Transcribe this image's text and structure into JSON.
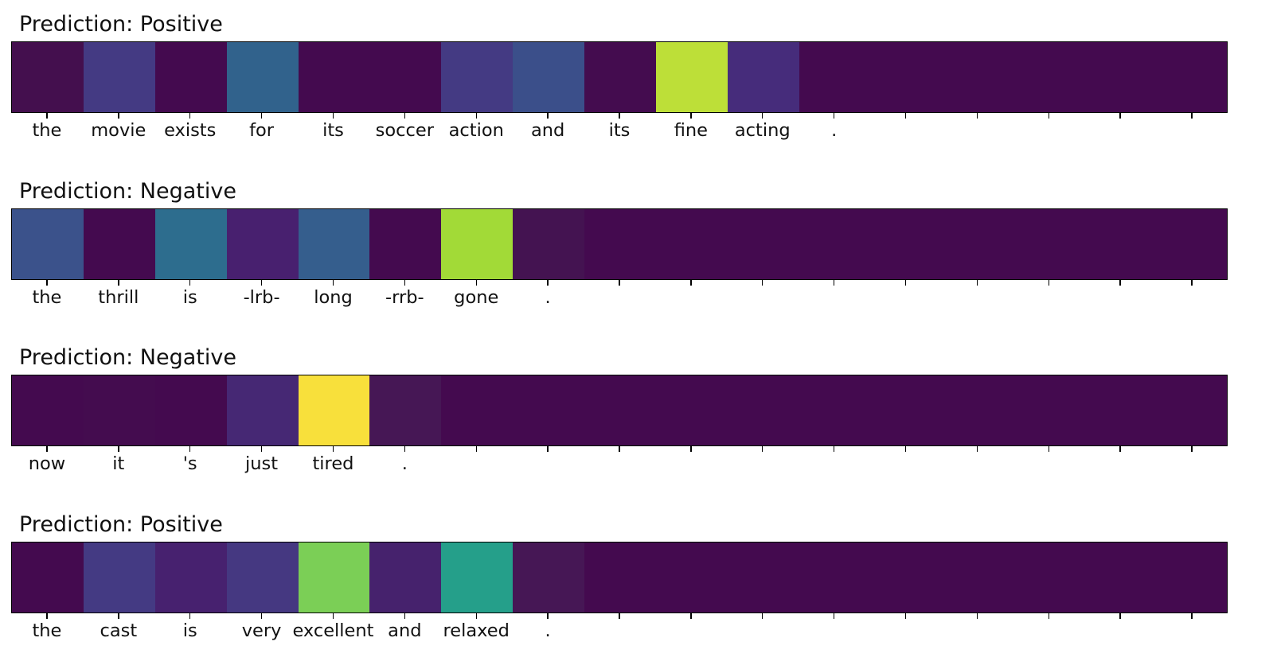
{
  "chart_data": [
    {
      "type": "heatmap",
      "title": "Prediction: Positive",
      "tokens": [
        "the",
        "movie",
        "exists",
        "for",
        "its",
        "soccer",
        "action",
        "and",
        "its",
        "fine",
        "acting",
        "."
      ],
      "values": [
        0.03,
        0.15,
        0.0,
        0.35,
        0.0,
        0.0,
        0.15,
        0.25,
        0.01,
        0.85,
        0.12,
        0.0
      ],
      "colors": [
        "#440f4e",
        "#443a83",
        "#440a4f",
        "#31628c",
        "#440a4f",
        "#440a4f",
        "#443a83",
        "#3b4f8a",
        "#440c4f",
        "#bddf38",
        "#462c7b",
        "#440a4f",
        "#440a4f",
        "#440a4f",
        "#440a4f",
        "#440a4f",
        "#440a4f"
      ],
      "num_positions": 17,
      "colormap": "viridis"
    },
    {
      "type": "heatmap",
      "title": "Prediction: Negative",
      "tokens": [
        "the",
        "thrill",
        "is",
        "-lrb-",
        "long",
        "-rrb-",
        "gone",
        "."
      ],
      "values": [
        0.25,
        0.0,
        0.38,
        0.1,
        0.3,
        0.0,
        0.8,
        0.04
      ],
      "colors": [
        "#3b528b",
        "#440a4f",
        "#2d6d8e",
        "#48206f",
        "#355e8d",
        "#440a4f",
        "#a2da37",
        "#441351",
        "#440a4f",
        "#440a4f",
        "#440a4f",
        "#440a4f",
        "#440a4f",
        "#440a4f",
        "#440a4f",
        "#440a4f",
        "#440a4f"
      ],
      "num_positions": 17,
      "colormap": "viridis"
    },
    {
      "type": "heatmap",
      "title": "Prediction: Negative",
      "tokens": [
        "now",
        "it",
        "'s",
        "just",
        "tired",
        "."
      ],
      "values": [
        0.0,
        0.01,
        0.0,
        0.12,
        1.0,
        0.04
      ],
      "colors": [
        "#440a4f",
        "#440c4f",
        "#440a4f",
        "#462874",
        "#f8e03b",
        "#461755",
        "#440a4f",
        "#440a4f",
        "#440a4f",
        "#440a4f",
        "#440a4f",
        "#440a4f",
        "#440a4f",
        "#440a4f",
        "#440a4f",
        "#440a4f",
        "#440a4f"
      ],
      "num_positions": 17,
      "colormap": "viridis"
    },
    {
      "type": "heatmap",
      "title": "Prediction: Positive",
      "tokens": [
        "the",
        "cast",
        "is",
        "very",
        "excellent",
        "and",
        "relaxed",
        "."
      ],
      "values": [
        0.0,
        0.15,
        0.08,
        0.17,
        0.72,
        0.07,
        0.52,
        0.04
      ],
      "colors": [
        "#440a4f",
        "#443a83",
        "#47216f",
        "#453881",
        "#7bcf56",
        "#46226d",
        "#259f8a",
        "#461755",
        "#440a4f",
        "#440a4f",
        "#440a4f",
        "#440a4f",
        "#440a4f",
        "#440a4f",
        "#440a4f",
        "#440a4f",
        "#440a4f"
      ],
      "num_positions": 17,
      "colormap": "viridis"
    }
  ]
}
